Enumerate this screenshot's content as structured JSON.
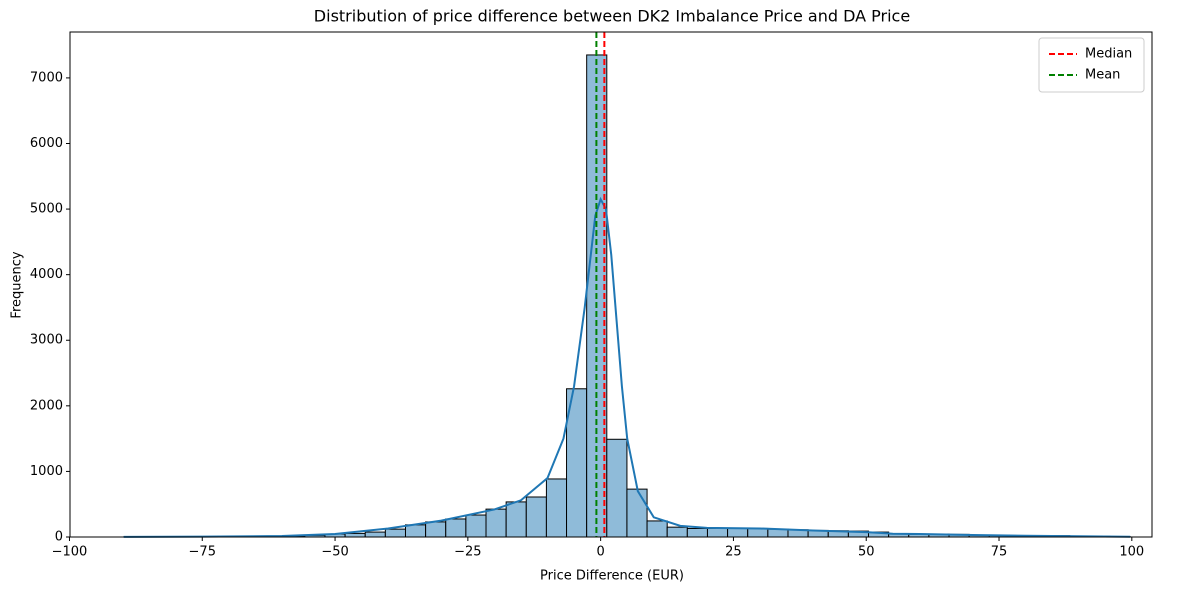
{
  "chart_data": {
    "type": "histogram",
    "title": "Distribution of price difference between DK2 Imbalance Price and DA Price",
    "x_label": "Price Difference (EUR)",
    "y_label": "Frequency",
    "bins": [
      -89.8,
      -86.01,
      -82.22,
      -78.43,
      -74.64,
      -70.85,
      -67.06,
      -63.27,
      -59.48,
      -55.69,
      -51.9,
      -48.11,
      -44.32,
      -40.53,
      -36.74,
      -32.95,
      -29.16,
      -25.37,
      -21.58,
      -17.79,
      -14.0,
      -10.21,
      -6.42,
      -2.63,
      1.16,
      4.95,
      8.74,
      12.53,
      16.32,
      20.11,
      23.9,
      27.69,
      31.48,
      35.27,
      39.06,
      42.85,
      46.64,
      50.43,
      54.22,
      58.01,
      61.8,
      65.59,
      69.38,
      73.17,
      76.96,
      80.75,
      84.54,
      88.33,
      92.12,
      95.91,
      99.7
    ],
    "values": [
      1,
      2,
      2,
      3,
      4,
      6,
      8,
      12,
      15,
      25,
      45,
      55,
      75,
      120,
      185,
      230,
      275,
      335,
      425,
      535,
      610,
      885,
      2260,
      7350,
      1490,
      730,
      245,
      150,
      130,
      130,
      135,
      130,
      120,
      110,
      100,
      95,
      90,
      75,
      45,
      40,
      45,
      40,
      30,
      25,
      20,
      20,
      20,
      15,
      10,
      5
    ],
    "color": "#8fbbd9",
    "edge_color": "#000000",
    "kde": {
      "color": "#1f77b4",
      "x": [
        -89.8,
        -75,
        -60,
        -50,
        -40,
        -30,
        -20,
        -15,
        -10,
        -7,
        -5,
        -3,
        -2,
        -1,
        0,
        1,
        2,
        3,
        4,
        5,
        7,
        10,
        15,
        20,
        30,
        40,
        50,
        55,
        60,
        70,
        80,
        90,
        99.7
      ],
      "values": [
        2,
        5,
        15,
        45,
        130,
        250,
        420,
        560,
        900,
        1500,
        2300,
        3500,
        4200,
        4900,
        5150,
        5000,
        4300,
        3300,
        2300,
        1500,
        700,
        300,
        170,
        140,
        130,
        100,
        75,
        50,
        45,
        30,
        20,
        12,
        3
      ]
    },
    "reference_lines": [
      {
        "name": "Median",
        "value": 0.7,
        "color": "#ff0000"
      },
      {
        "name": "Mean",
        "value": -0.8,
        "color": "#008000"
      }
    ],
    "legend": "upper right",
    "xlim": [
      -99.9,
      103.8
    ],
    "ylim": [
      0,
      7700
    ],
    "xticks": [
      {
        "value": -100,
        "label": "−100"
      },
      {
        "value": -75,
        "label": "−75"
      },
      {
        "value": -50,
        "label": "−50"
      },
      {
        "value": -25,
        "label": "−25"
      },
      0,
      25,
      50,
      75,
      100
    ],
    "yticks": [
      0,
      1000,
      2000,
      3000,
      4000,
      5000,
      6000,
      7000
    ]
  }
}
